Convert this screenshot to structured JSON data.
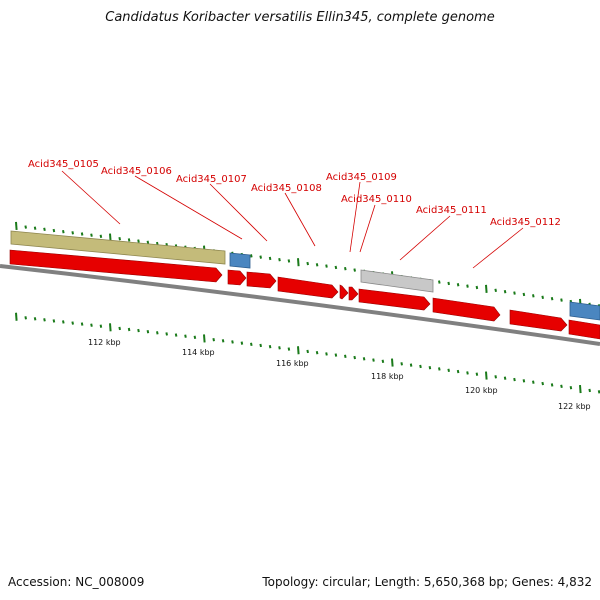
{
  "title": "Candidatus Koribacter versatilis Ellin345, complete genome",
  "accession_text": "Accession: NC_008009",
  "summary_text": "Topology: circular; Length: 5,650,368 bp; Genes: 4,832",
  "scale_labels": [
    "112 kbp",
    "114 kbp",
    "116 kbp",
    "118 kbp",
    "120 kbp",
    "122 kbp"
  ],
  "gene_labels": [
    "Acid345_0105",
    "Acid345_0106",
    "Acid345_0107",
    "Acid345_0108",
    "Acid345_0109",
    "Acid345_0110",
    "Acid345_0111",
    "Acid345_0112"
  ],
  "colors": {
    "gene_arrow": "#e60000",
    "label": "#d40000",
    "backbone": "#808080",
    "tick": "#1a7a1a",
    "feature_olive": "#c4bb7a",
    "feature_blue": "#4a86c0",
    "feature_gray": "#c8c8c8"
  }
}
